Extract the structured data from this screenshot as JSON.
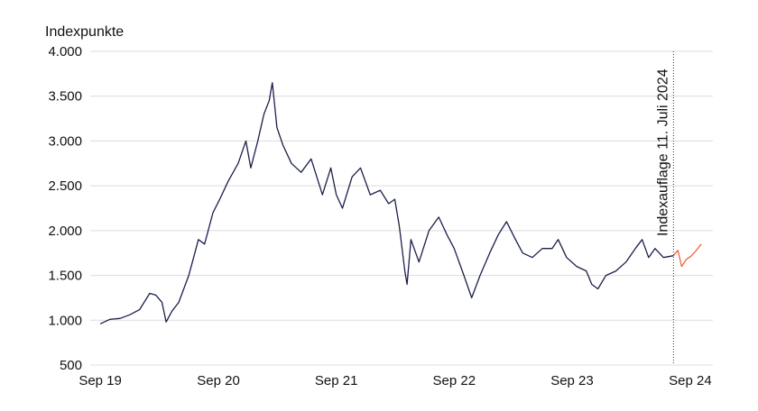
{
  "chart_data": {
    "type": "line",
    "title": "",
    "ylabel": "Indexpunkte",
    "xlabel": "",
    "ylim": [
      500,
      4000
    ],
    "y_ticks": [
      500,
      1000,
      1500,
      2000,
      2500,
      3000,
      3500,
      4000
    ],
    "y_tick_labels": [
      "500",
      "1.000",
      "1.500",
      "2.000",
      "2.500",
      "3.000",
      "3.500",
      "4.000"
    ],
    "x_ticks": [
      "Sep 19",
      "Sep 20",
      "Sep 21",
      "Sep 22",
      "Sep 23",
      "Sep 24"
    ],
    "grid": "horizontal",
    "annotation": {
      "label": "Indexauflage 11. Juli 2024",
      "x": "2024-07-11",
      "style": "dotted vertical line"
    },
    "colors": {
      "backtest": "#1b1f4b",
      "live": "#f0663a",
      "grid": "#dcdcdc"
    },
    "series": [
      {
        "key": "backtest",
        "points": [
          [
            "2019-09-01",
            960
          ],
          [
            "2019-10-01",
            1010
          ],
          [
            "2019-11-01",
            1020
          ],
          [
            "2019-12-01",
            1060
          ],
          [
            "2020-01-01",
            1120
          ],
          [
            "2020-02-01",
            1300
          ],
          [
            "2020-02-20",
            1280
          ],
          [
            "2020-03-10",
            1200
          ],
          [
            "2020-03-23",
            980
          ],
          [
            "2020-04-10",
            1100
          ],
          [
            "2020-05-01",
            1200
          ],
          [
            "2020-06-01",
            1500
          ],
          [
            "2020-07-01",
            1900
          ],
          [
            "2020-07-20",
            1850
          ],
          [
            "2020-08-15",
            2200
          ],
          [
            "2020-09-05",
            2350
          ],
          [
            "2020-10-01",
            2550
          ],
          [
            "2020-11-01",
            2750
          ],
          [
            "2020-11-25",
            3000
          ],
          [
            "2020-12-10",
            2700
          ],
          [
            "2021-01-01",
            3000
          ],
          [
            "2021-01-20",
            3300
          ],
          [
            "2021-02-05",
            3450
          ],
          [
            "2021-02-15",
            3650
          ],
          [
            "2021-03-01",
            3150
          ],
          [
            "2021-03-20",
            2950
          ],
          [
            "2021-04-15",
            2750
          ],
          [
            "2021-05-15",
            2650
          ],
          [
            "2021-06-15",
            2800
          ],
          [
            "2021-07-20",
            2400
          ],
          [
            "2021-08-15",
            2700
          ],
          [
            "2021-09-01",
            2400
          ],
          [
            "2021-09-20",
            2250
          ],
          [
            "2021-10-20",
            2600
          ],
          [
            "2021-11-15",
            2700
          ],
          [
            "2021-12-15",
            2400
          ],
          [
            "2022-01-15",
            2450
          ],
          [
            "2022-02-10",
            2300
          ],
          [
            "2022-03-01",
            2350
          ],
          [
            "2022-03-15",
            2050
          ],
          [
            "2022-04-01",
            1550
          ],
          [
            "2022-04-08",
            1400
          ],
          [
            "2022-04-20",
            1900
          ],
          [
            "2022-05-15",
            1650
          ],
          [
            "2022-06-15",
            2000
          ],
          [
            "2022-07-15",
            2150
          ],
          [
            "2022-08-10",
            1950
          ],
          [
            "2022-09-01",
            1800
          ],
          [
            "2022-10-01",
            1500
          ],
          [
            "2022-10-25",
            1250
          ],
          [
            "2022-11-20",
            1500
          ],
          [
            "2022-12-20",
            1750
          ],
          [
            "2023-01-15",
            1950
          ],
          [
            "2023-02-10",
            2100
          ],
          [
            "2023-03-10",
            1900
          ],
          [
            "2023-04-01",
            1750
          ],
          [
            "2023-05-01",
            1700
          ],
          [
            "2023-06-01",
            1800
          ],
          [
            "2023-07-01",
            1800
          ],
          [
            "2023-07-20",
            1900
          ],
          [
            "2023-08-15",
            1700
          ],
          [
            "2023-09-15",
            1600
          ],
          [
            "2023-10-15",
            1550
          ],
          [
            "2023-11-01",
            1400
          ],
          [
            "2023-11-20",
            1350
          ],
          [
            "2023-12-15",
            1500
          ],
          [
            "2024-01-15",
            1550
          ],
          [
            "2024-02-15",
            1650
          ],
          [
            "2024-03-15",
            1800
          ],
          [
            "2024-04-05",
            1900
          ],
          [
            "2024-04-25",
            1700
          ],
          [
            "2024-05-15",
            1800
          ],
          [
            "2024-06-10",
            1700
          ],
          [
            "2024-07-11",
            1720
          ]
        ]
      },
      {
        "key": "live",
        "points": [
          [
            "2024-07-11",
            1720
          ],
          [
            "2024-07-25",
            1780
          ],
          [
            "2024-08-05",
            1600
          ],
          [
            "2024-08-20",
            1680
          ],
          [
            "2024-09-05",
            1720
          ],
          [
            "2024-09-20",
            1780
          ],
          [
            "2024-10-05",
            1850
          ]
        ]
      }
    ]
  }
}
